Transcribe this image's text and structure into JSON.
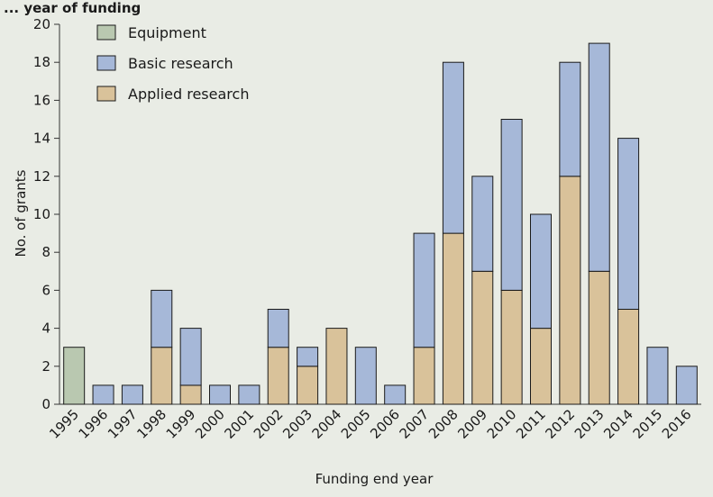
{
  "chart_data": {
    "type": "bar",
    "stacked": true,
    "title_fragment": "... year of funding",
    "xlabel": "Funding end year",
    "ylabel": "No. of grants",
    "ylim": [
      0,
      20
    ],
    "yticks": [
      0,
      2,
      4,
      6,
      8,
      10,
      12,
      14,
      16,
      18,
      20
    ],
    "grid": false,
    "legend_position": "top-left",
    "categories": [
      "1995",
      "1996",
      "1997",
      "1998",
      "1999",
      "2000",
      "2001",
      "2002",
      "2003",
      "2004",
      "2005",
      "2006",
      "2007",
      "2008",
      "2009",
      "2010",
      "2011",
      "2012",
      "2013",
      "2014",
      "2015",
      "2016"
    ],
    "series": [
      {
        "name": "Equipment",
        "color": "#b9c8b0",
        "values": [
          3,
          0,
          0,
          0,
          0,
          0,
          0,
          0,
          0,
          0,
          0,
          0,
          0,
          0,
          0,
          0,
          0,
          0,
          0,
          0,
          0,
          0
        ]
      },
      {
        "name": "Applied research",
        "color": "#d9c29a",
        "values": [
          0,
          0,
          0,
          3,
          1,
          0,
          0,
          3,
          2,
          4,
          0,
          0,
          3,
          9,
          7,
          6,
          4,
          12,
          7,
          5,
          0,
          0
        ]
      },
      {
        "name": "Basic research",
        "color": "#a6b8d8",
        "values": [
          0,
          1,
          1,
          3,
          3,
          1,
          1,
          2,
          1,
          0,
          3,
          1,
          6,
          9,
          5,
          9,
          6,
          6,
          12,
          9,
          3,
          2
        ]
      }
    ],
    "legend_order": [
      "Equipment",
      "Basic research",
      "Applied research"
    ]
  }
}
